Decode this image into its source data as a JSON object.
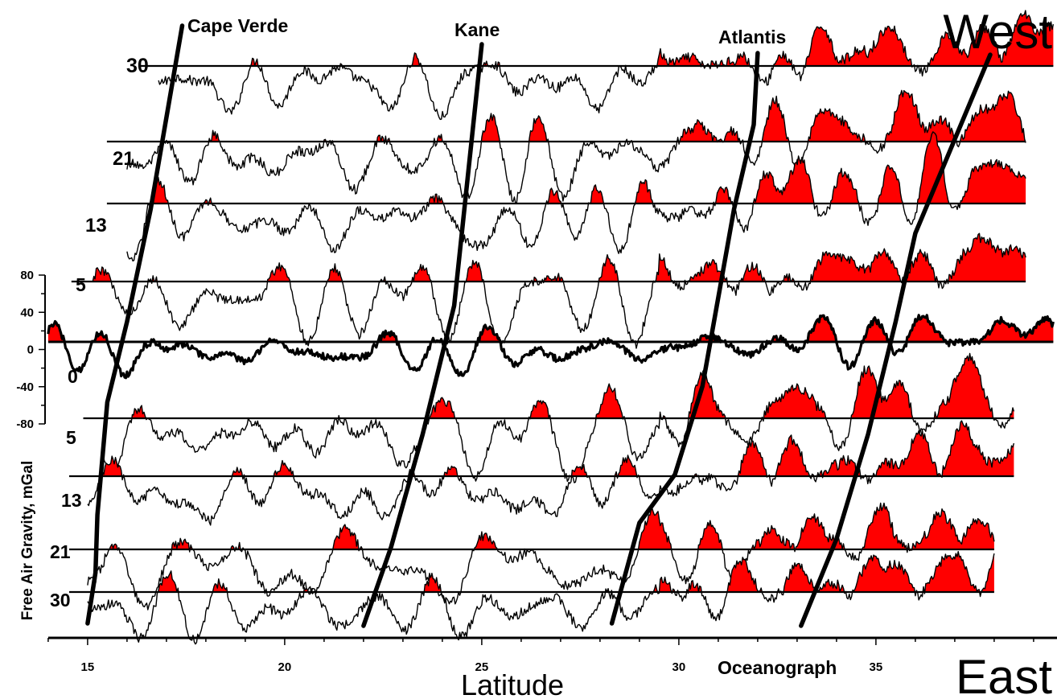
{
  "chart_data": {
    "type": "line",
    "xlabel": "Latitude",
    "ylabel": "Free Air Gravity, mGal",
    "xlim": [
      14,
      39.5
    ],
    "x_ticks": [
      15,
      20,
      25,
      30,
      35
    ],
    "ylim": [
      -80,
      80
    ],
    "y_ticks": [
      80,
      40,
      0,
      -40,
      -80
    ],
    "corner_labels": {
      "top": "West",
      "bottom": "East"
    },
    "colors": {
      "fill_positive": "#ff0000",
      "line": "#000000"
    },
    "grid": false,
    "fracture_zones": [
      {
        "name": "Cape Verde",
        "lat_bottom": 14.8,
        "lat_top": 17.4
      },
      {
        "name": "Kane",
        "lat_bottom": 22.0,
        "lat_top": 25.0
      },
      {
        "name": "Atlantis",
        "lat_bottom": 28.3,
        "lat_top": 32.0
      },
      {
        "name": "Oceanograph",
        "lat_bottom": 33.1,
        "lat_top": 37.9
      }
    ],
    "profiles": [
      {
        "label": "30",
        "side": "West",
        "lat_start": 16.8,
        "lat_end": 39.5,
        "ridge_lat_shift": 2.5
      },
      {
        "label": "21",
        "side": "West",
        "lat_start": 16.0,
        "lat_end": 38.8,
        "ridge_lat_shift": 2.1
      },
      {
        "label": "13",
        "side": "West",
        "lat_start": 16.0,
        "lat_end": 38.8,
        "ridge_lat_shift": 1.6
      },
      {
        "label": "5",
        "side": "West",
        "lat_start": 15.1,
        "lat_end": 38.8,
        "ridge_lat_shift": 0.9
      },
      {
        "label": "0",
        "side": "Axis",
        "lat_start": 14.0,
        "lat_end": 39.5,
        "ridge_lat_shift": 0.0
      },
      {
        "label": "5",
        "side": "East",
        "lat_start": 15.4,
        "lat_end": 38.5,
        "ridge_lat_shift": -0.4
      },
      {
        "label": "13",
        "side": "East",
        "lat_start": 15.0,
        "lat_end": 38.5,
        "ridge_lat_shift": -0.9
      },
      {
        "label": "21",
        "side": "East",
        "lat_start": 15.0,
        "lat_end": 38.0,
        "ridge_lat_shift": -1.5
      },
      {
        "label": "30",
        "side": "East",
        "lat_start": 15.0,
        "lat_end": 38.0,
        "ridge_lat_shift": -1.9
      }
    ]
  }
}
